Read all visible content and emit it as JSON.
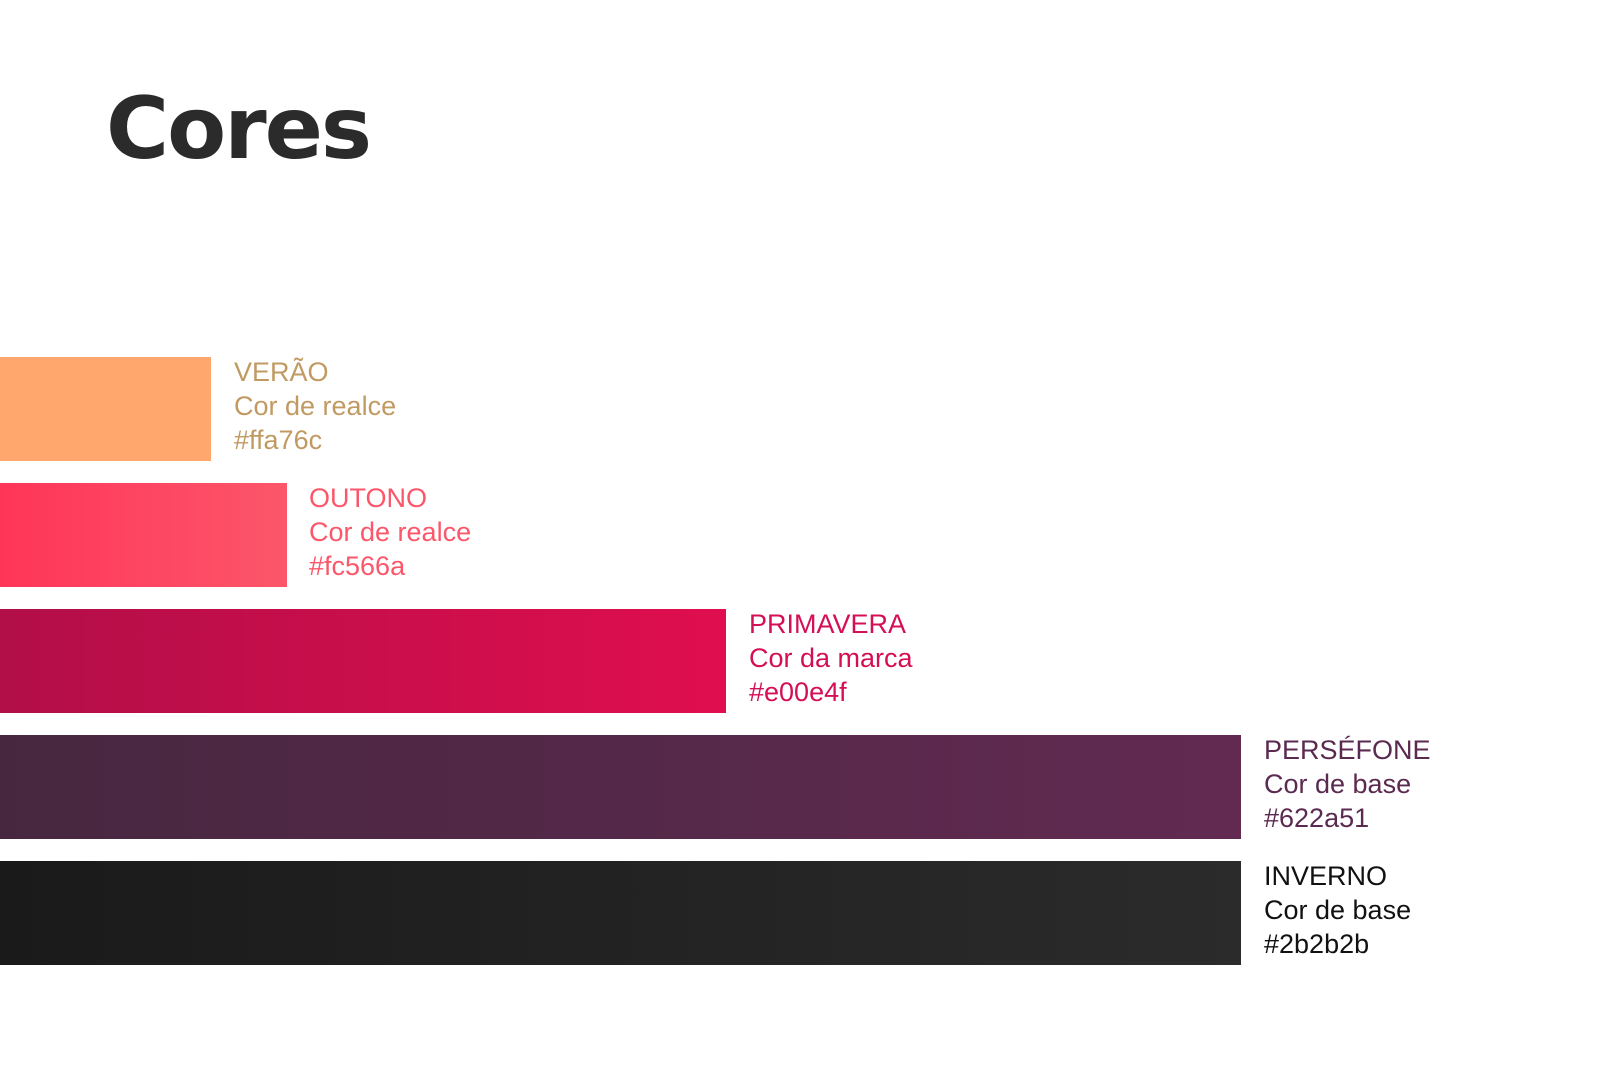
{
  "title": "Cores",
  "swatches": [
    {
      "name": "VERÃO",
      "role": "Cor de realce",
      "hex": "#ffa76c",
      "color": "#ffa76c",
      "label_color": "#c19a62"
    },
    {
      "name": "OUTONO",
      "role": "Cor de realce",
      "hex": "#fc566a",
      "color": "#fc566a",
      "label_color": "#fc566a"
    },
    {
      "name": "PRIMAVERA",
      "role": "Cor da marca",
      "hex": "#e00e4f",
      "color": "#e00e4f",
      "label_color": "#d50f55"
    },
    {
      "name": "PERSÉFONE",
      "role": "Cor de base",
      "hex": "#622a51",
      "color": "#622a51",
      "label_color": "#5b2a50"
    },
    {
      "name": "INVERNO",
      "role": "Cor de base",
      "hex": "#2b2b2b",
      "color": "#2b2b2b",
      "label_color": "#111111"
    }
  ]
}
